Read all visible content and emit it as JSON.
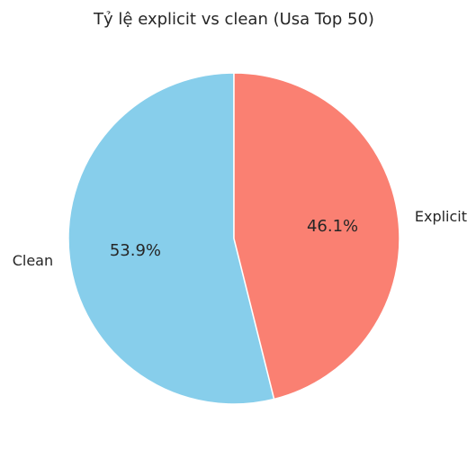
{
  "chart_data": {
    "type": "pie",
    "title": "Tỷ lệ explicit vs clean (Usa Top 50)",
    "slices": [
      {
        "label": "Clean",
        "value": 53.9,
        "pct_label": "53.9%",
        "color": "#87CEEB"
      },
      {
        "label": "Explicit",
        "value": 46.1,
        "pct_label": "46.1%",
        "color": "#FA8072"
      }
    ],
    "start_angle_deg": 90,
    "direction": "counterclockwise",
    "edge_color": "#ffffff"
  }
}
